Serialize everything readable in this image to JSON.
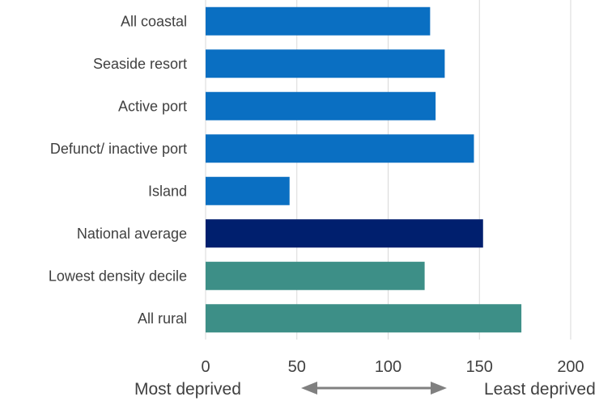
{
  "chart_data": {
    "type": "bar",
    "orientation": "horizontal",
    "categories": [
      "All coastal",
      "Seaside resort",
      "Active port",
      "Defunct/ inactive port",
      "Island",
      "National average",
      "Lowest density decile",
      "All rural"
    ],
    "values": [
      123,
      131,
      126,
      147,
      46,
      152,
      120,
      173
    ],
    "bar_colors": [
      "#0a6fc2",
      "#0a6fc2",
      "#0a6fc2",
      "#0a6fc2",
      "#0a6fc2",
      "#001f6e",
      "#3d8f87",
      "#3d8f87"
    ],
    "xlim": [
      0,
      200
    ],
    "xticks": [
      "0",
      "50",
      "100",
      "150",
      "200"
    ],
    "grid": true,
    "left_end_label": "Most deprived",
    "right_end_label": "Least deprived",
    "arrow_color": "#808080"
  }
}
